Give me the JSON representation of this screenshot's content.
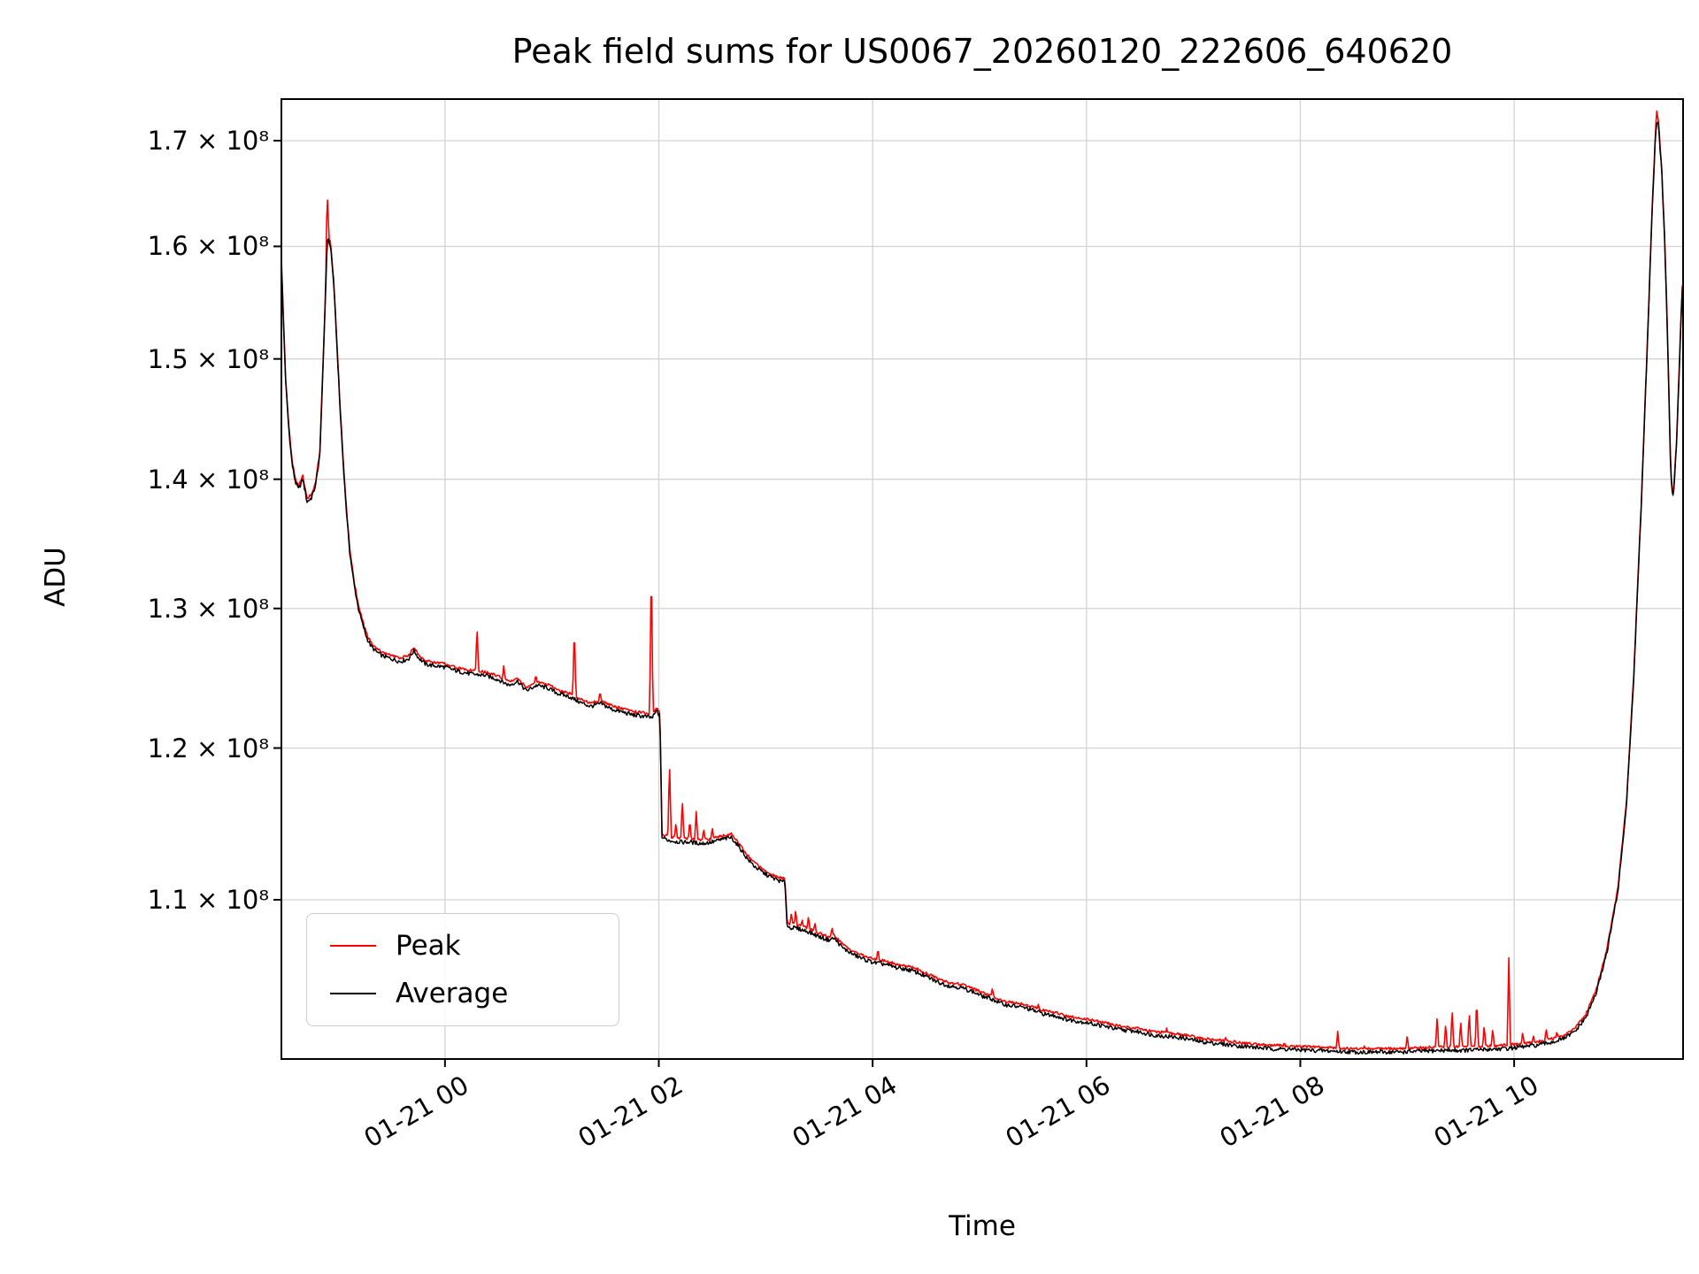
{
  "title": "Peak field sums for US0067_20260120_222606_640620",
  "colors": {
    "peak": "#ff0000",
    "average": "#000000",
    "grid": "#d3d3d3",
    "spine": "#000000",
    "legend_border": "#cccccc"
  },
  "chart_data": {
    "type": "line",
    "title": "Peak field sums for US0067_20260120_222606_640620",
    "xlabel": "Time",
    "ylabel": "ADU",
    "y_scale": "log",
    "grid": true,
    "legend_position": "lower left",
    "value_scale": 100000000,
    "x_domain_hours": [
      -1.53,
      11.58
    ],
    "y_domain": [
      100400000,
      174100000
    ],
    "x_ticks": [
      {
        "t": 0,
        "label": "01-21 00"
      },
      {
        "t": 2,
        "label": "01-21 02"
      },
      {
        "t": 4,
        "label": "01-21 04"
      },
      {
        "t": 6,
        "label": "01-21 06"
      },
      {
        "t": 8,
        "label": "01-21 08"
      },
      {
        "t": 10,
        "label": "01-21 10"
      }
    ],
    "y_ticks": [
      {
        "v": 110000000,
        "label": "1.1 × 10⁸"
      },
      {
        "v": 120000000,
        "label": "1.2 × 10⁸"
      },
      {
        "v": 130000000,
        "label": "1.3 × 10⁸"
      },
      {
        "v": 140000000,
        "label": "1.4 × 10⁸"
      },
      {
        "v": 150000000,
        "label": "1.5 × 10⁸"
      },
      {
        "v": 160000000,
        "label": "1.6 × 10⁸"
      },
      {
        "v": 170000000,
        "label": "1.7 × 10⁸"
      }
    ],
    "grid_color": "#d3d3d3",
    "series": [
      {
        "name": "Peak",
        "color": "#ff0000",
        "offset_rel": 0.0012,
        "noise_rel": 0.0015,
        "spikes": [
          [
            -1.1,
            1.648
          ],
          [
            0.3,
            1.287
          ],
          [
            0.55,
            1.258
          ],
          [
            0.85,
            1.252
          ],
          [
            1.21,
            1.288
          ],
          [
            1.45,
            1.24
          ],
          [
            1.93,
            1.338
          ],
          [
            2.1,
            1.192
          ],
          [
            2.16,
            1.15
          ],
          [
            2.22,
            1.166
          ],
          [
            2.29,
            1.152
          ],
          [
            2.35,
            1.157
          ],
          [
            2.42,
            1.146
          ],
          [
            2.5,
            1.147
          ],
          [
            3.24,
            1.092
          ],
          [
            3.28,
            1.094
          ],
          [
            3.34,
            1.088
          ],
          [
            3.4,
            1.09
          ],
          [
            3.46,
            1.086
          ],
          [
            3.62,
            1.083
          ],
          [
            4.05,
            1.07
          ],
          [
            4.6,
            1.052
          ],
          [
            5.12,
            1.046
          ],
          [
            5.55,
            1.036
          ],
          [
            6.1,
            1.027
          ],
          [
            6.75,
            1.022
          ],
          [
            7.3,
            1.017
          ],
          [
            7.85,
            1.014
          ],
          [
            8.35,
            1.02
          ],
          [
            8.6,
            1.012
          ],
          [
            9.0,
            1.018
          ],
          [
            9.28,
            1.03
          ],
          [
            9.36,
            1.025
          ],
          [
            9.42,
            1.034
          ],
          [
            9.5,
            1.027
          ],
          [
            9.58,
            1.032
          ],
          [
            9.65,
            1.04
          ],
          [
            9.72,
            1.024
          ],
          [
            9.8,
            1.022
          ],
          [
            9.95,
            1.064
          ],
          [
            10.08,
            1.02
          ],
          [
            10.18,
            1.018
          ],
          [
            10.3,
            1.022
          ],
          [
            10.4,
            1.02
          ],
          [
            11.335,
            1.73
          ]
        ]
      },
      {
        "name": "Average",
        "color": "#000000",
        "noise_rel": 0.0012,
        "keypoints": [
          [
            -1.53,
            1.585
          ],
          [
            -1.51,
            1.53
          ],
          [
            -1.49,
            1.48
          ],
          [
            -1.46,
            1.44
          ],
          [
            -1.43,
            1.412
          ],
          [
            -1.4,
            1.398
          ],
          [
            -1.37,
            1.392
          ],
          [
            -1.33,
            1.4
          ],
          [
            -1.29,
            1.382
          ],
          [
            -1.25,
            1.385
          ],
          [
            -1.21,
            1.395
          ],
          [
            -1.17,
            1.42
          ],
          [
            -1.13,
            1.52
          ],
          [
            -1.1,
            1.608
          ],
          [
            -1.07,
            1.6
          ],
          [
            -1.04,
            1.565
          ],
          [
            -1.01,
            1.51
          ],
          [
            -0.98,
            1.455
          ],
          [
            -0.95,
            1.41
          ],
          [
            -0.92,
            1.372
          ],
          [
            -0.89,
            1.342
          ],
          [
            -0.85,
            1.318
          ],
          [
            -0.81,
            1.3
          ],
          [
            -0.77,
            1.288
          ],
          [
            -0.73,
            1.278
          ],
          [
            -0.69,
            1.272
          ],
          [
            -0.64,
            1.268
          ],
          [
            -0.58,
            1.265
          ],
          [
            -0.5,
            1.263
          ],
          [
            -0.42,
            1.261
          ],
          [
            -0.34,
            1.263
          ],
          [
            -0.29,
            1.269
          ],
          [
            -0.25,
            1.264
          ],
          [
            -0.18,
            1.259
          ],
          [
            -0.1,
            1.258
          ],
          [
            0.0,
            1.257
          ],
          [
            0.12,
            1.254
          ],
          [
            0.25,
            1.252
          ],
          [
            0.38,
            1.251
          ],
          [
            0.5,
            1.248
          ],
          [
            0.6,
            1.244
          ],
          [
            0.68,
            1.247
          ],
          [
            0.76,
            1.24
          ],
          [
            0.86,
            1.244
          ],
          [
            0.96,
            1.242
          ],
          [
            1.06,
            1.238
          ],
          [
            1.16,
            1.236
          ],
          [
            1.26,
            1.232
          ],
          [
            1.36,
            1.229
          ],
          [
            1.46,
            1.231
          ],
          [
            1.56,
            1.227
          ],
          [
            1.66,
            1.225
          ],
          [
            1.76,
            1.223
          ],
          [
            1.86,
            1.222
          ],
          [
            1.94,
            1.221
          ],
          [
            1.98,
            1.226
          ],
          [
            2.01,
            1.222
          ],
          [
            2.03,
            1.14
          ],
          [
            2.1,
            1.138
          ],
          [
            2.2,
            1.137
          ],
          [
            2.3,
            1.137
          ],
          [
            2.4,
            1.136
          ],
          [
            2.5,
            1.137
          ],
          [
            2.6,
            1.139
          ],
          [
            2.68,
            1.14
          ],
          [
            2.76,
            1.133
          ],
          [
            2.83,
            1.126
          ],
          [
            2.9,
            1.121
          ],
          [
            2.98,
            1.117
          ],
          [
            3.06,
            1.114
          ],
          [
            3.13,
            1.112
          ],
          [
            3.18,
            1.111
          ],
          [
            3.2,
            1.083
          ],
          [
            3.3,
            1.082
          ],
          [
            3.4,
            1.08
          ],
          [
            3.5,
            1.077
          ],
          [
            3.58,
            1.075
          ],
          [
            3.64,
            1.076
          ],
          [
            3.72,
            1.07
          ],
          [
            3.82,
            1.066
          ],
          [
            3.92,
            1.063
          ],
          [
            4.02,
            1.061
          ],
          [
            4.12,
            1.06
          ],
          [
            4.22,
            1.058
          ],
          [
            4.32,
            1.057
          ],
          [
            4.42,
            1.055
          ],
          [
            4.52,
            1.052
          ],
          [
            4.62,
            1.049
          ],
          [
            4.72,
            1.047
          ],
          [
            4.82,
            1.046
          ],
          [
            4.92,
            1.044
          ],
          [
            5.02,
            1.041
          ],
          [
            5.12,
            1.039
          ],
          [
            5.22,
            1.036
          ],
          [
            5.32,
            1.035
          ],
          [
            5.42,
            1.034
          ],
          [
            5.52,
            1.032
          ],
          [
            5.62,
            1.03
          ],
          [
            5.72,
            1.029
          ],
          [
            5.82,
            1.027
          ],
          [
            5.92,
            1.026
          ],
          [
            6.02,
            1.025
          ],
          [
            6.17,
            1.023
          ],
          [
            6.32,
            1.021
          ],
          [
            6.47,
            1.02
          ],
          [
            6.62,
            1.018
          ],
          [
            6.77,
            1.017
          ],
          [
            6.92,
            1.016
          ],
          [
            7.07,
            1.014
          ],
          [
            7.22,
            1.013
          ],
          [
            7.37,
            1.012
          ],
          [
            7.52,
            1.011
          ],
          [
            7.72,
            1.01
          ],
          [
            7.92,
            1.0095
          ],
          [
            8.12,
            1.009
          ],
          [
            8.32,
            1.0085
          ],
          [
            8.52,
            1.008
          ],
          [
            8.72,
            1.008
          ],
          [
            8.92,
            1.008
          ],
          [
            9.12,
            1.0085
          ],
          [
            9.32,
            1.009
          ],
          [
            9.52,
            1.009
          ],
          [
            9.72,
            1.0095
          ],
          [
            9.92,
            1.01
          ],
          [
            10.07,
            1.011
          ],
          [
            10.22,
            1.012
          ],
          [
            10.37,
            1.014
          ],
          [
            10.47,
            1.016
          ],
          [
            10.57,
            1.02
          ],
          [
            10.67,
            1.028
          ],
          [
            10.77,
            1.043
          ],
          [
            10.87,
            1.068
          ],
          [
            10.97,
            1.105
          ],
          [
            11.05,
            1.16
          ],
          [
            11.12,
            1.25
          ],
          [
            11.19,
            1.38
          ],
          [
            11.25,
            1.52
          ],
          [
            11.29,
            1.63
          ],
          [
            11.32,
            1.7
          ],
          [
            11.335,
            1.717
          ],
          [
            11.35,
            1.715
          ],
          [
            11.38,
            1.67
          ],
          [
            11.41,
            1.6
          ],
          [
            11.44,
            1.5
          ],
          [
            11.46,
            1.42
          ],
          [
            11.475,
            1.39
          ],
          [
            11.49,
            1.387
          ],
          [
            11.52,
            1.43
          ],
          [
            11.55,
            1.505
          ],
          [
            11.57,
            1.555
          ],
          [
            11.58,
            1.575
          ]
        ]
      }
    ]
  }
}
